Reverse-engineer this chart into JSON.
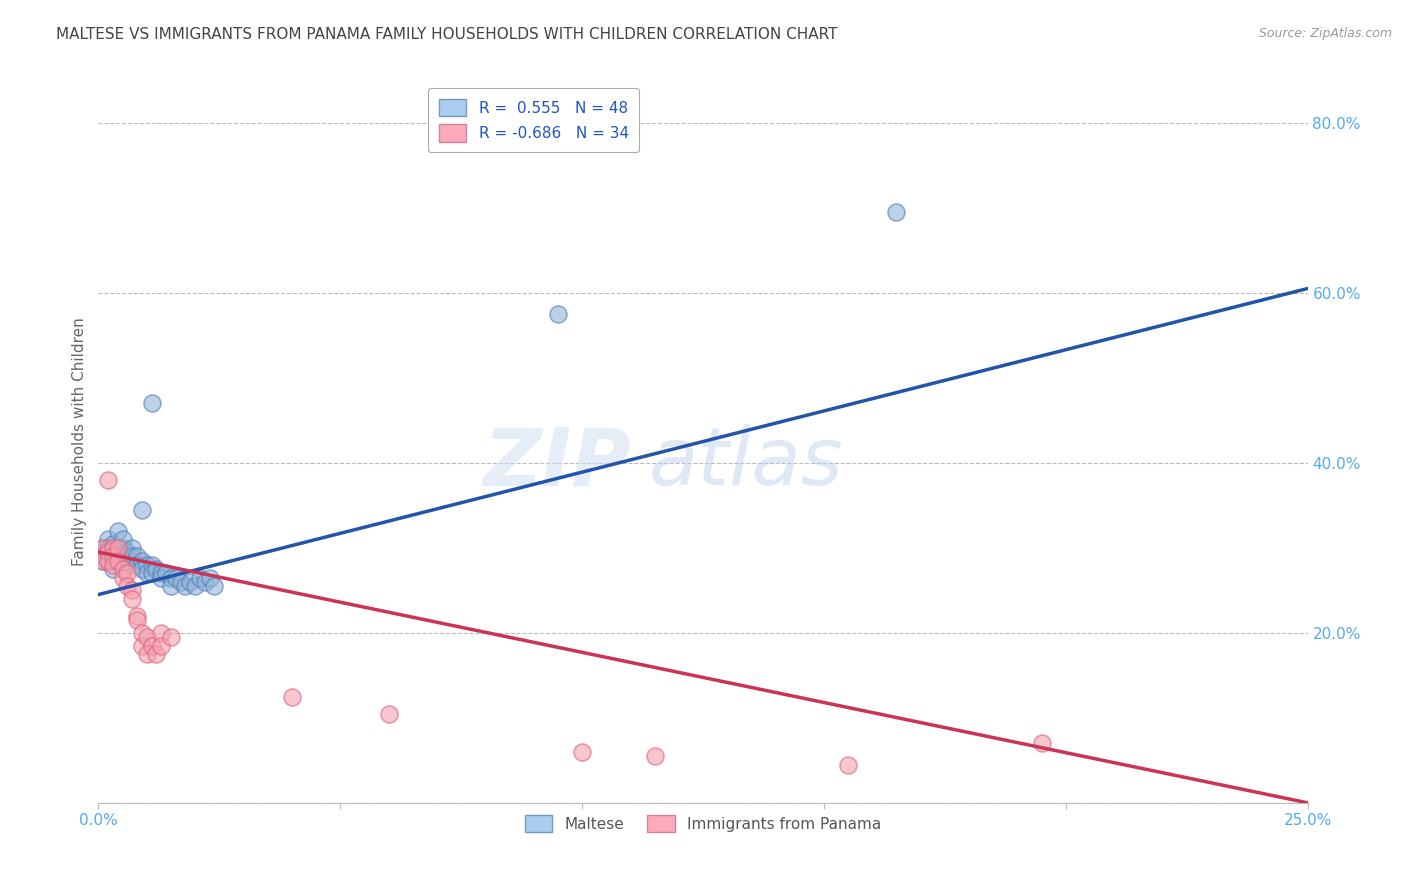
{
  "title": "MALTESE VS IMMIGRANTS FROM PANAMA FAMILY HOUSEHOLDS WITH CHILDREN CORRELATION CHART",
  "source": "Source: ZipAtlas.com",
  "ylabel": "Family Households with Children",
  "watermark_zip": "ZIP",
  "watermark_atlas": "atlas",
  "xmin": 0.0,
  "xmax": 0.25,
  "ymin": 0.0,
  "ymax": 0.85,
  "yticks": [
    0.0,
    0.2,
    0.4,
    0.6,
    0.8
  ],
  "xticks": [
    0.0,
    0.05,
    0.1,
    0.15,
    0.2,
    0.25
  ],
  "xtick_labels": [
    "0.0%",
    "",
    "",
    "",
    "",
    "25.0%"
  ],
  "ytick_labels": [
    "",
    "20.0%",
    "40.0%",
    "60.0%",
    "80.0%"
  ],
  "blue_R": 0.555,
  "blue_N": 48,
  "pink_R": -0.686,
  "pink_N": 34,
  "blue_color": "#92B4D8",
  "pink_color": "#F4A0B0",
  "blue_edge_color": "#5580BB",
  "pink_edge_color": "#DD6680",
  "blue_line_color": "#2255AA",
  "pink_line_color": "#CC3355",
  "background_color": "#FFFFFF",
  "grid_color": "#BBBBBB",
  "title_color": "#444444",
  "axis_label_color": "#55AAEE",
  "blue_scatter": [
    [
      0.001,
      0.295
    ],
    [
      0.001,
      0.3
    ],
    [
      0.001,
      0.285
    ],
    [
      0.002,
      0.31
    ],
    [
      0.002,
      0.295
    ],
    [
      0.002,
      0.3
    ],
    [
      0.002,
      0.285
    ],
    [
      0.003,
      0.305
    ],
    [
      0.003,
      0.295
    ],
    [
      0.003,
      0.285
    ],
    [
      0.003,
      0.275
    ],
    [
      0.004,
      0.3
    ],
    [
      0.004,
      0.29
    ],
    [
      0.004,
      0.32
    ],
    [
      0.005,
      0.3
    ],
    [
      0.005,
      0.29
    ],
    [
      0.005,
      0.31
    ],
    [
      0.006,
      0.295
    ],
    [
      0.006,
      0.285
    ],
    [
      0.007,
      0.3
    ],
    [
      0.007,
      0.29
    ],
    [
      0.008,
      0.29
    ],
    [
      0.008,
      0.28
    ],
    [
      0.009,
      0.285
    ],
    [
      0.009,
      0.275
    ],
    [
      0.01,
      0.28
    ],
    [
      0.01,
      0.27
    ],
    [
      0.011,
      0.28
    ],
    [
      0.011,
      0.27
    ],
    [
      0.012,
      0.275
    ],
    [
      0.013,
      0.27
    ],
    [
      0.013,
      0.265
    ],
    [
      0.014,
      0.27
    ],
    [
      0.015,
      0.265
    ],
    [
      0.015,
      0.255
    ],
    [
      0.016,
      0.265
    ],
    [
      0.017,
      0.26
    ],
    [
      0.018,
      0.255
    ],
    [
      0.019,
      0.26
    ],
    [
      0.02,
      0.255
    ],
    [
      0.021,
      0.265
    ],
    [
      0.022,
      0.26
    ],
    [
      0.023,
      0.265
    ],
    [
      0.024,
      0.255
    ],
    [
      0.009,
      0.345
    ],
    [
      0.011,
      0.47
    ],
    [
      0.095,
      0.575
    ],
    [
      0.165,
      0.695
    ]
  ],
  "pink_scatter": [
    [
      0.001,
      0.3
    ],
    [
      0.001,
      0.29
    ],
    [
      0.001,
      0.285
    ],
    [
      0.002,
      0.38
    ],
    [
      0.002,
      0.295
    ],
    [
      0.002,
      0.285
    ],
    [
      0.003,
      0.3
    ],
    [
      0.003,
      0.29
    ],
    [
      0.003,
      0.28
    ],
    [
      0.004,
      0.3
    ],
    [
      0.004,
      0.285
    ],
    [
      0.005,
      0.275
    ],
    [
      0.005,
      0.265
    ],
    [
      0.006,
      0.27
    ],
    [
      0.006,
      0.255
    ],
    [
      0.007,
      0.25
    ],
    [
      0.007,
      0.24
    ],
    [
      0.008,
      0.22
    ],
    [
      0.008,
      0.215
    ],
    [
      0.009,
      0.2
    ],
    [
      0.009,
      0.185
    ],
    [
      0.01,
      0.195
    ],
    [
      0.01,
      0.175
    ],
    [
      0.011,
      0.185
    ],
    [
      0.012,
      0.175
    ],
    [
      0.013,
      0.2
    ],
    [
      0.013,
      0.185
    ],
    [
      0.015,
      0.195
    ],
    [
      0.04,
      0.125
    ],
    [
      0.06,
      0.105
    ],
    [
      0.1,
      0.06
    ],
    [
      0.115,
      0.055
    ],
    [
      0.155,
      0.045
    ],
    [
      0.195,
      0.07
    ]
  ],
  "blue_line": [
    [
      0.0,
      0.245
    ],
    [
      0.25,
      0.605
    ]
  ],
  "pink_line": [
    [
      0.0,
      0.295
    ],
    [
      0.25,
      0.0
    ]
  ]
}
